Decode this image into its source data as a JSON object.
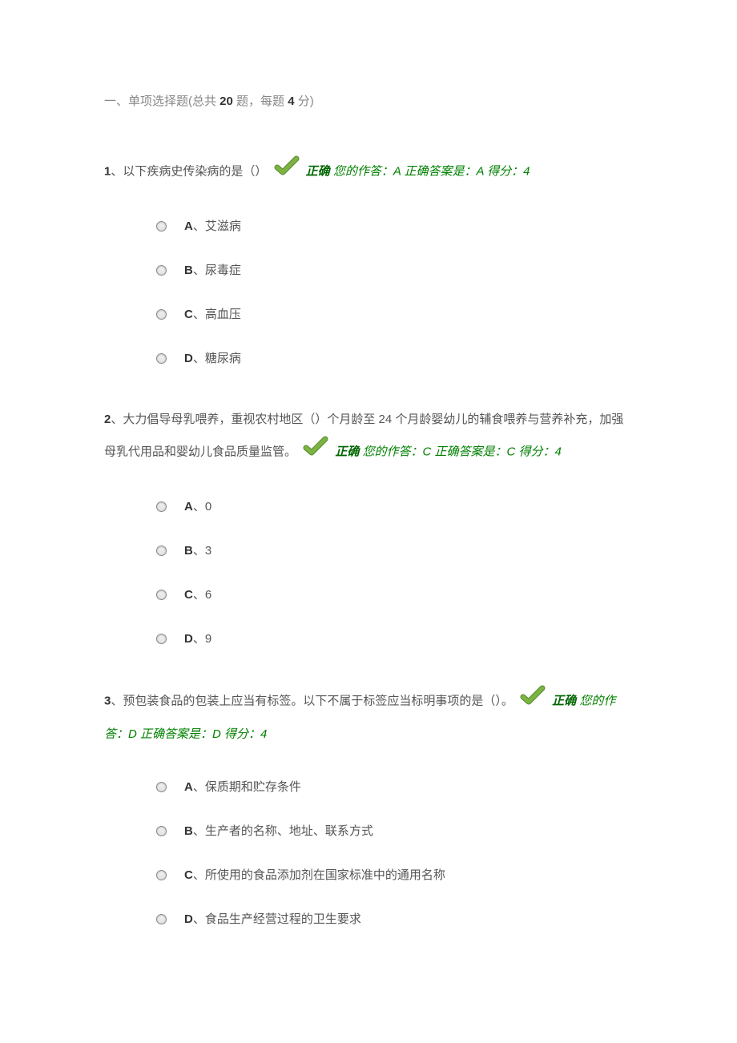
{
  "section_header": {
    "prefix": "一、单项选择题(总共 ",
    "total_questions": "20",
    "middle": " 题，每题 ",
    "points_per": "4",
    "suffix": " 分)"
  },
  "result_labels": {
    "correct": "正确",
    "your_answer_prefix": "您的作答：",
    "correct_answer_prefix": "正确答案是：",
    "score_prefix": "得分：",
    "score_value": "4"
  },
  "questions": [
    {
      "number": "1",
      "text_before": "、以下疾病史传染病的是（）",
      "text_after": "",
      "your_answer": "A",
      "correct_answer": "A",
      "options": [
        {
          "letter": "A",
          "text": "、艾滋病"
        },
        {
          "letter": "B",
          "text": "、尿毒症"
        },
        {
          "letter": "C",
          "text": "、高血压"
        },
        {
          "letter": "D",
          "text": "、糖尿病"
        }
      ]
    },
    {
      "number": "2",
      "text_before": "、大力倡导母乳喂养，重视农村地区（）个月龄至 24 个月龄婴幼儿的辅食喂养与营养补充，加强母乳代用品和婴幼儿食品质量监管。",
      "text_after": "",
      "your_answer": "C",
      "correct_answer": "C",
      "options": [
        {
          "letter": "A",
          "text": "、0"
        },
        {
          "letter": "B",
          "text": "、3"
        },
        {
          "letter": "C",
          "text": "、6"
        },
        {
          "letter": "D",
          "text": "、9"
        }
      ]
    },
    {
      "number": "3",
      "text_before": "、预包装食品的包装上应当有标签。以下不属于标签应当标明事项的是（）。",
      "text_after": "",
      "your_answer": "D",
      "correct_answer": "D",
      "options": [
        {
          "letter": "A",
          "text": "、保质期和贮存条件"
        },
        {
          "letter": "B",
          "text": "、生产者的名称、地址、联系方式"
        },
        {
          "letter": "C",
          "text": "、所使用的食品添加剂在国家标准中的通用名称"
        },
        {
          "letter": "D",
          "text": "、食品生产经营过程的卫生要求"
        }
      ]
    }
  ],
  "colors": {
    "correct_text": "#006600",
    "answer_text": "#008000",
    "checkmark_fill": "#7cb342",
    "checkmark_stroke": "#558b2f",
    "body_text": "#555555",
    "header_text": "#888888",
    "bold_text": "#333333",
    "background": "#ffffff"
  }
}
